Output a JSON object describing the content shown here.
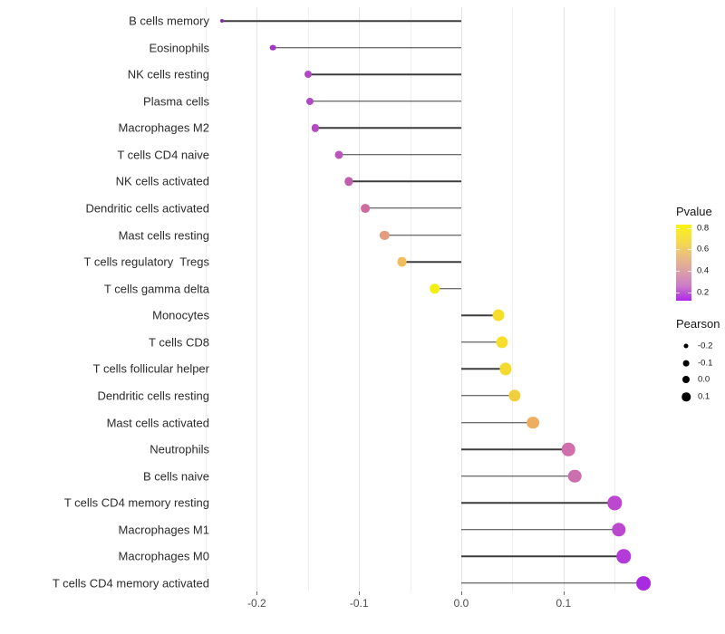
{
  "chart_data": {
    "type": "lollipop",
    "title": "",
    "xlabel": "",
    "ylabel": "",
    "x_ticks": [
      "-0.2",
      "-0.1",
      "0.0",
      "0.1"
    ],
    "x_tick_values": [
      -0.2,
      -0.1,
      0.0,
      0.1
    ],
    "xlim": [
      -0.255,
      0.195
    ],
    "grid_step": 0.05,
    "grid_on": true,
    "points": [
      {
        "label": "B cells memory",
        "pearson": -0.234,
        "pvalue": 0.02,
        "color": "#8B27B8"
      },
      {
        "label": "Eosinophils",
        "pearson": -0.184,
        "pvalue": 0.1,
        "color": "#A136C9"
      },
      {
        "label": "NK cells resting",
        "pearson": -0.15,
        "pvalue": 0.16,
        "color": "#B149C4"
      },
      {
        "label": "Plasma cells",
        "pearson": -0.148,
        "pvalue": 0.16,
        "color": "#B149C4"
      },
      {
        "label": "Macrophages M2",
        "pearson": -0.143,
        "pvalue": 0.17,
        "color": "#B34CC2"
      },
      {
        "label": "T cells CD4 naive",
        "pearson": -0.12,
        "pvalue": 0.22,
        "color": "#BA55BA"
      },
      {
        "label": "NK cells activated",
        "pearson": -0.11,
        "pvalue": 0.28,
        "color": "#C15DAE"
      },
      {
        "label": "Dendritic cells activated",
        "pearson": -0.094,
        "pvalue": 0.37,
        "color": "#CD6B9C"
      },
      {
        "label": "Mast cells resting",
        "pearson": -0.075,
        "pvalue": 0.52,
        "color": "#E59B7E"
      },
      {
        "label": "T cells regulatory  Tregs",
        "pearson": -0.058,
        "pvalue": 0.63,
        "color": "#F0BE5C"
      },
      {
        "label": "T cells gamma delta",
        "pearson": -0.026,
        "pvalue": 0.82,
        "color": "#F3EE12"
      },
      {
        "label": "Monocytes",
        "pearson": 0.036,
        "pvalue": 0.77,
        "color": "#F5DF2B"
      },
      {
        "label": "T cells CD8",
        "pearson": 0.04,
        "pvalue": 0.77,
        "color": "#F5DF2B"
      },
      {
        "label": "T cells follicular helper",
        "pearson": 0.043,
        "pvalue": 0.75,
        "color": "#F3DB31"
      },
      {
        "label": "Dendritic cells resting",
        "pearson": 0.052,
        "pvalue": 0.7,
        "color": "#F1CE3C"
      },
      {
        "label": "Mast cells activated",
        "pearson": 0.07,
        "pvalue": 0.6,
        "color": "#EDAE62"
      },
      {
        "label": "Neutrophils",
        "pearson": 0.105,
        "pvalue": 0.33,
        "color": "#D06FAC"
      },
      {
        "label": "B cells naive",
        "pearson": 0.111,
        "pvalue": 0.33,
        "color": "#CC6FAE"
      },
      {
        "label": "T cells CD4 memory resting",
        "pearson": 0.15,
        "pvalue": 0.13,
        "color": "#BB48CF"
      },
      {
        "label": "Macrophages M1",
        "pearson": 0.154,
        "pvalue": 0.13,
        "color": "#BB48CF"
      },
      {
        "label": "Macrophages M0",
        "pearson": 0.159,
        "pvalue": 0.1,
        "color": "#B23BD9"
      },
      {
        "label": "T cells CD4 memory activated",
        "pearson": 0.178,
        "pvalue": 0.06,
        "color": "#A92BE0"
      }
    ]
  },
  "legend": {
    "pvalue": {
      "title": "Pvalue",
      "tick_labels": [
        "0.8",
        "0.6",
        "0.4",
        "0.2"
      ],
      "gradient_bottom_to_top": [
        "#AE29E9",
        "#CC7DC6",
        "#DCA3A4",
        "#EBC07F",
        "#F5DE45",
        "#FAF316"
      ]
    },
    "pearson": {
      "title": "Pearson",
      "dot_color": "#000000",
      "items": [
        {
          "label": "-0.2",
          "size": 5
        },
        {
          "label": "-0.1",
          "size": 6.8
        },
        {
          "label": "0.0",
          "size": 8
        },
        {
          "label": "0.1",
          "size": 9.5
        }
      ]
    }
  }
}
